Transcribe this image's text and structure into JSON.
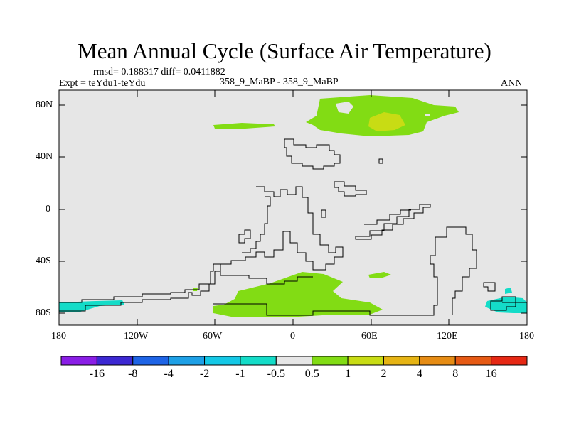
{
  "title": "Mean Annual Cycle (Surface Air Temperature)",
  "stats": "rmsd= 0.188317 diff= 0.0411882",
  "experiment": "Expt = teYdu1-teYdu",
  "case": "358_9_MaBP - 358_9_MaBP",
  "season": "ANN",
  "lat_ticks": [
    "80N",
    "40N",
    "0",
    "40S",
    "80S"
  ],
  "lon_ticks": [
    "180",
    "120W",
    "60W",
    "0",
    "60E",
    "120E",
    "180"
  ],
  "colorbar": {
    "labels": [
      "-16",
      "-8",
      "-4",
      "-2",
      "-1",
      "-0.5",
      "0.5",
      "1",
      "2",
      "4",
      "8",
      "16"
    ],
    "colors": [
      "#8a1ee6",
      "#3c28d2",
      "#1e64e6",
      "#1ea0e6",
      "#14c8e6",
      "#14dcc8",
      "#e6e6e6",
      "#82dc14",
      "#c8dc14",
      "#e6b414",
      "#e68c14",
      "#e65a14",
      "#e62814"
    ]
  },
  "colors": {
    "background": "#e6e6e6",
    "positive": "#82dc14",
    "warm": "#c8dc14",
    "negative": "#14dcc8"
  }
}
